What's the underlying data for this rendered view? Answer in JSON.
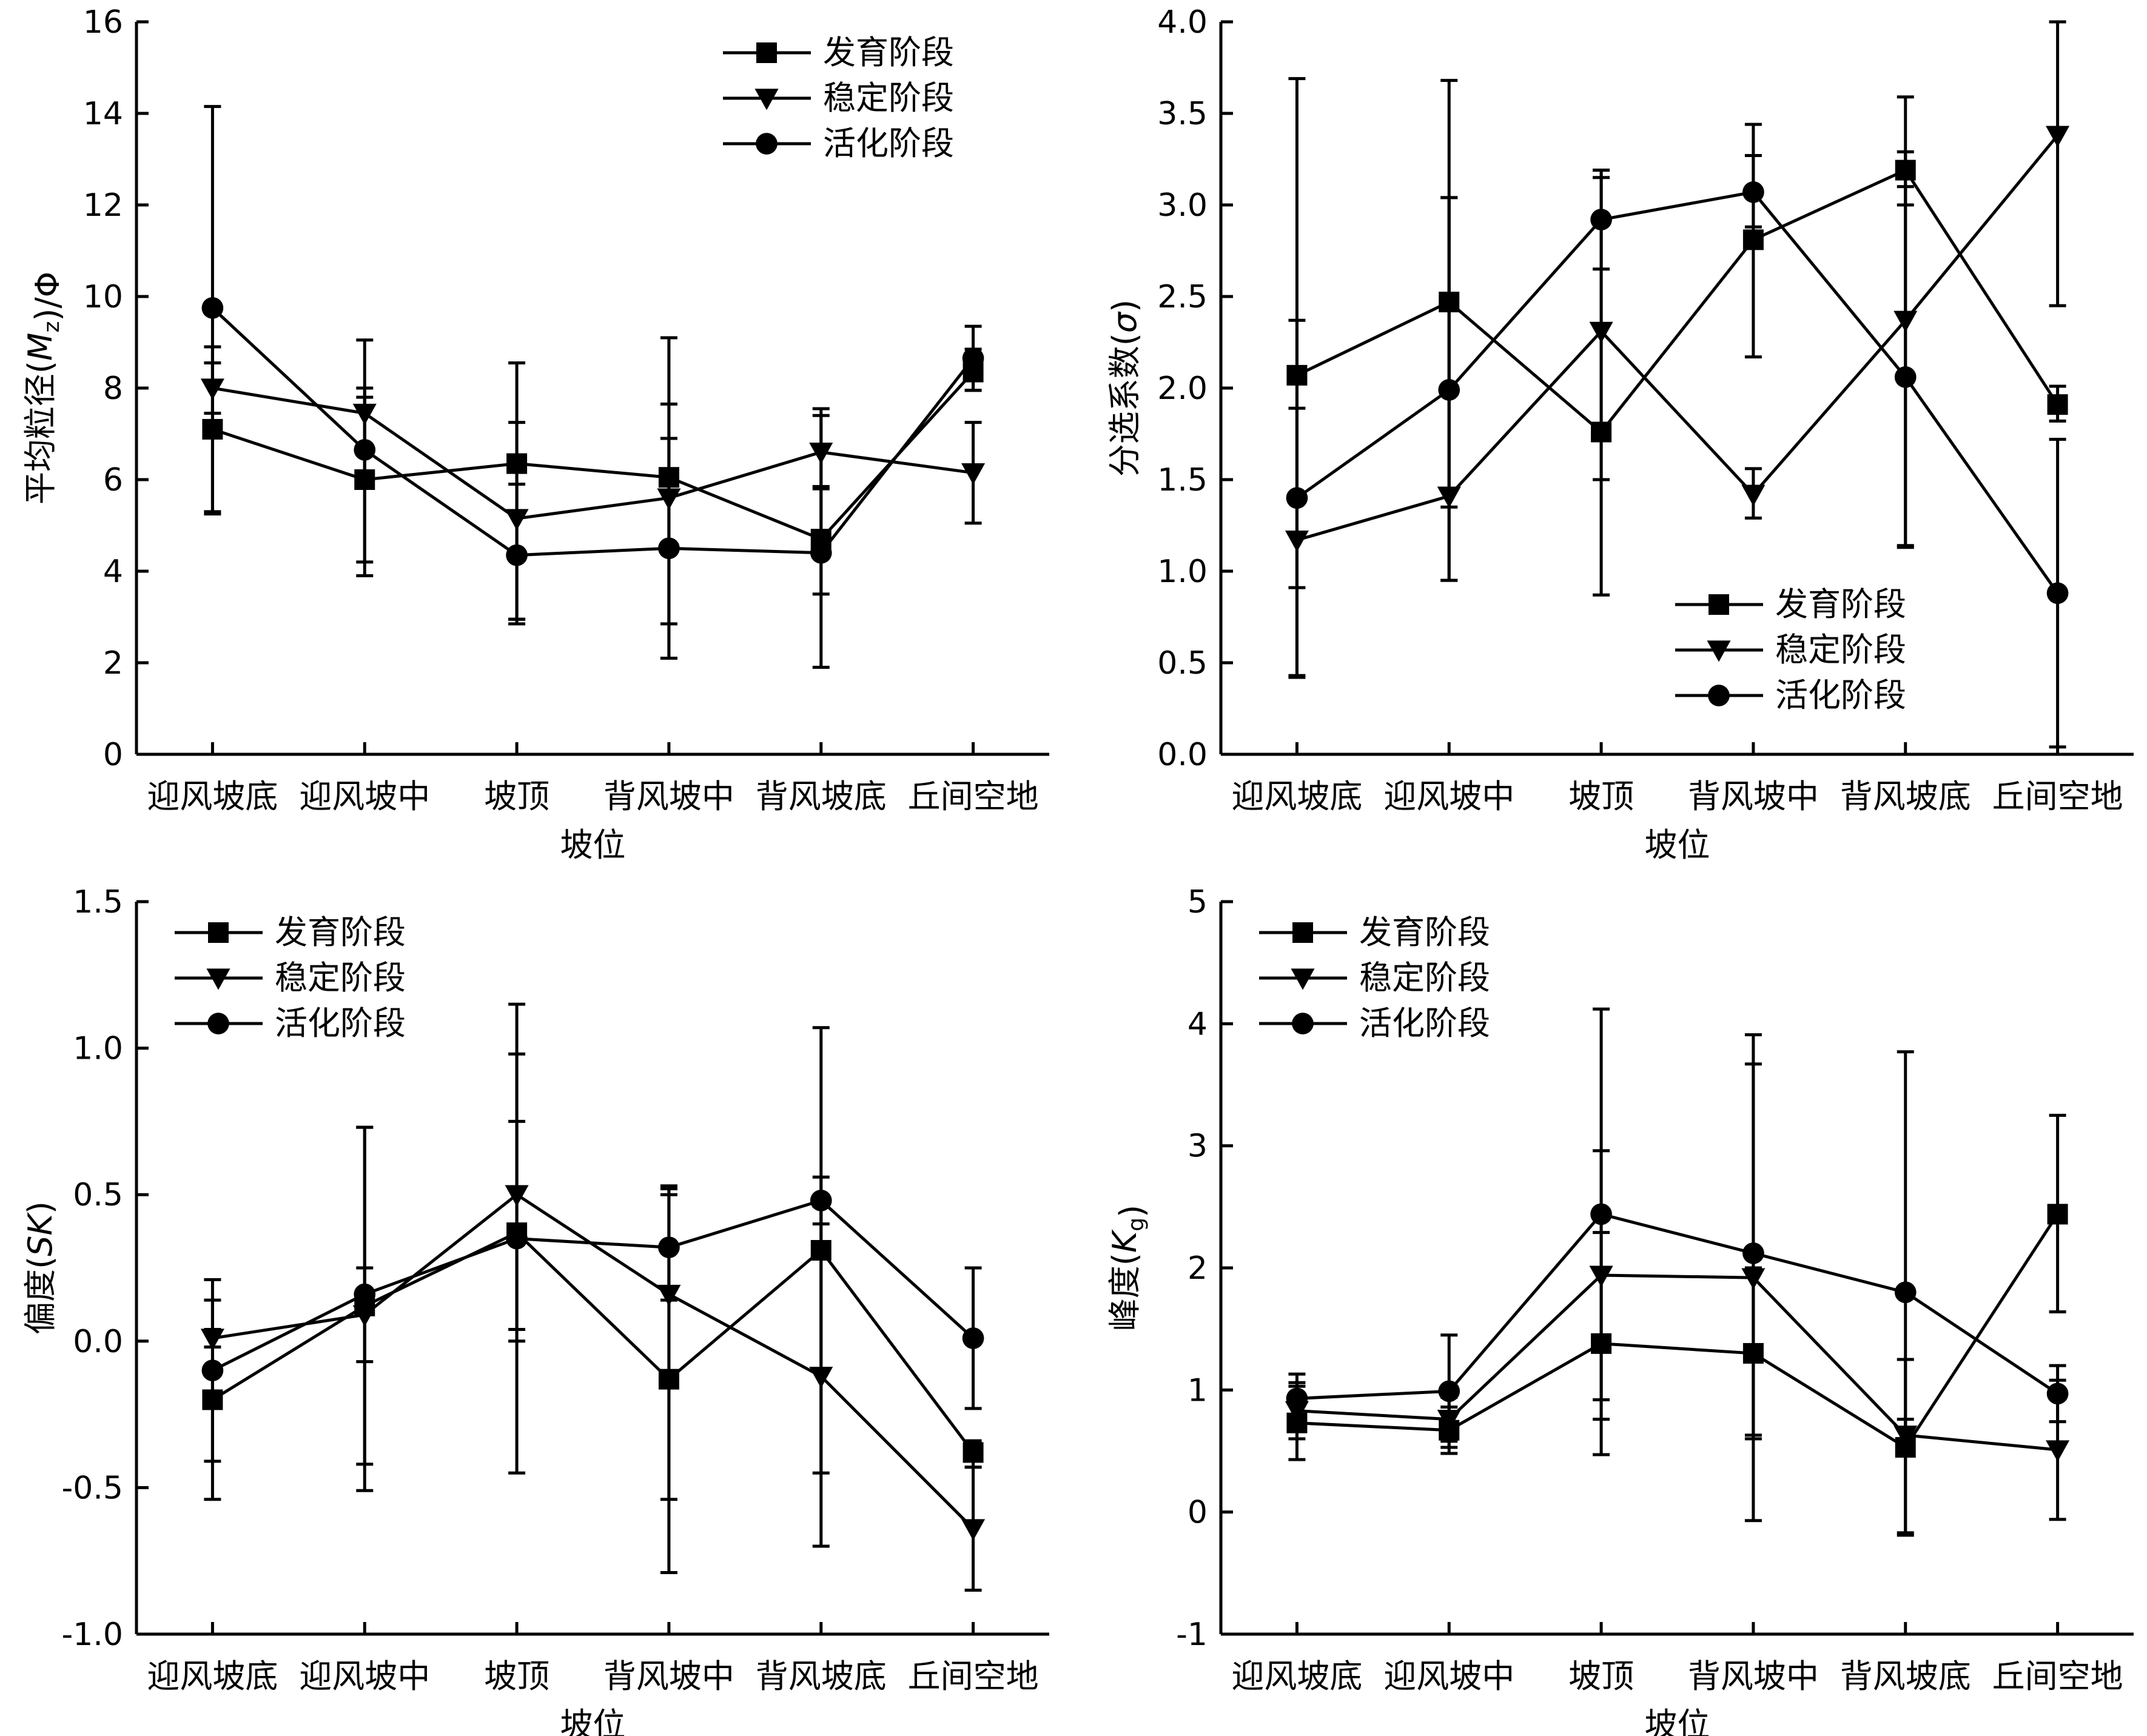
{
  "chart_data": [
    {
      "type": "line",
      "panel": "top-left",
      "xlabel": "坡位",
      "ylabel": "平均粒径(Mz)/Φ",
      "ylabel_parts": [
        {
          "t": "平均粒径(",
          "style": "normal"
        },
        {
          "t": "M",
          "style": "italic"
        },
        {
          "t": "z",
          "style": "sub"
        },
        {
          "t": ")/Φ",
          "style": "normal"
        }
      ],
      "ylim": [
        0,
        16
      ],
      "yticks": [
        0,
        2,
        4,
        6,
        8,
        10,
        12,
        14,
        16
      ],
      "ytick_labels": [
        "0",
        "2",
        "4",
        "6",
        "8",
        "10",
        "12",
        "14",
        "16"
      ],
      "categories": [
        "迎风坡底",
        "迎风坡中",
        "坡顶",
        "背风坡中",
        "背风坡底",
        "丘间空地"
      ],
      "legend_position": "top-right",
      "series": [
        {
          "name": "发育阶段",
          "marker": "square",
          "values": [
            7.1,
            6.0,
            6.35,
            6.05,
            4.7,
            8.35
          ],
          "err": [
            [
              5.3,
              8.9
            ],
            [
              4.2,
              7.8
            ],
            [
              2.95,
              8.55
            ],
            [
              2.1,
              9.1
            ],
            [
              1.9,
              7.55
            ],
            [
              7.95,
              8.85
            ]
          ]
        },
        {
          "name": "稳定阶段",
          "marker": "triangle-down",
          "values": [
            8.0,
            7.45,
            5.15,
            5.6,
            6.6,
            6.15
          ],
          "err": [
            [
              7.45,
              8.55
            ],
            [
              5.9,
              9.05
            ],
            [
              2.85,
              7.25
            ],
            [
              2.85,
              7.65
            ],
            [
              5.8,
              7.4
            ],
            [
              5.05,
              7.25
            ]
          ]
        },
        {
          "name": "活化阶段",
          "marker": "circle",
          "values": [
            9.75,
            6.65,
            4.35,
            4.5,
            4.4,
            8.65
          ],
          "err": [
            [
              5.25,
              14.15
            ],
            [
              3.9,
              8.0
            ],
            [
              2.95,
              5.9
            ],
            [
              2.1,
              6.9
            ],
            [
              3.5,
              5.85
            ],
            [
              7.95,
              9.35
            ]
          ]
        }
      ]
    },
    {
      "type": "line",
      "panel": "top-right",
      "xlabel": "坡位",
      "ylabel": "分选系数(σ)",
      "ylabel_parts": [
        {
          "t": "分选系数(",
          "style": "normal"
        },
        {
          "t": "σ",
          "style": "italic"
        },
        {
          "t": ")",
          "style": "normal"
        }
      ],
      "ylim": [
        0.0,
        4.0
      ],
      "yticks": [
        0.0,
        0.5,
        1.0,
        1.5,
        2.0,
        2.5,
        3.0,
        3.5,
        4.0
      ],
      "ytick_labels": [
        "0.0",
        "0.5",
        "1.0",
        "1.5",
        "2.0",
        "2.5",
        "3.0",
        "3.5",
        "4.0"
      ],
      "categories": [
        "迎风坡底",
        "迎风坡中",
        "坡顶",
        "背风坡中",
        "背风坡底",
        "丘间空地"
      ],
      "legend_position": "bottom-right",
      "series": [
        {
          "name": "发育阶段",
          "marker": "square",
          "values": [
            2.07,
            2.47,
            1.76,
            2.81,
            3.19,
            1.91
          ],
          "err": [
            [
              0.42,
              3.69
            ],
            [
              0.95,
              3.68
            ],
            [
              0.87,
              3.19
            ],
            [
              2.17,
              3.44
            ],
            [
              3.0,
              3.59
            ],
            [
              1.82,
              2.01
            ]
          ]
        },
        {
          "name": "稳定阶段",
          "marker": "triangle-down",
          "values": [
            1.17,
            1.41,
            2.31,
            1.42,
            2.37,
            3.38
          ],
          "err": [
            [
              0.43,
              2.37
            ],
            [
              1.35,
              3.04
            ],
            [
              1.5,
              3.15
            ],
            [
              1.29,
              1.56
            ],
            [
              1.14,
              3.29
            ],
            [
              2.45,
              4.0
            ]
          ]
        },
        {
          "name": "活化阶段",
          "marker": "circle",
          "values": [
            1.4,
            1.99,
            2.92,
            3.07,
            2.06,
            0.88
          ],
          "err": [
            [
              0.91,
              1.89
            ],
            [
              0.95,
              3.04
            ],
            [
              2.65,
              3.19
            ],
            [
              2.88,
              3.27
            ],
            [
              1.13,
              3.1
            ],
            [
              0.04,
              1.72
            ]
          ]
        }
      ]
    },
    {
      "type": "line",
      "panel": "bottom-left",
      "xlabel": "坡位",
      "ylabel": "偏度(SK)",
      "ylabel_parts": [
        {
          "t": "偏度(",
          "style": "normal"
        },
        {
          "t": "SK",
          "style": "italic"
        },
        {
          "t": ")",
          "style": "normal"
        }
      ],
      "ylim": [
        -1.0,
        1.5
      ],
      "yticks": [
        -1.0,
        -0.5,
        0.0,
        0.5,
        1.0,
        1.5
      ],
      "ytick_labels": [
        "-1.0",
        "-0.5",
        "0.0",
        "0.5",
        "1.0",
        "1.5"
      ],
      "categories": [
        "迎风坡底",
        "迎风坡中",
        "坡顶",
        "背风坡中",
        "背风坡底",
        "丘间空地"
      ],
      "legend_position": "top-left",
      "series": [
        {
          "name": "发育阶段",
          "marker": "square",
          "values": [
            -0.2,
            0.12,
            0.37,
            -0.13,
            0.31,
            -0.38
          ],
          "err": [
            [
              -0.41,
              0.21
            ],
            [
              -0.51,
              0.73
            ],
            [
              -0.45,
              1.15
            ],
            [
              -0.79,
              0.53
            ],
            [
              -0.45,
              1.07
            ],
            [
              -0.43,
              -0.34
            ]
          ]
        },
        {
          "name": "稳定阶段",
          "marker": "triangle-down",
          "values": [
            0.01,
            0.09,
            0.5,
            0.16,
            -0.12,
            -0.64
          ],
          "err": [
            [
              -0.02,
              0.04
            ],
            [
              -0.07,
              0.25
            ],
            [
              0.04,
              0.98
            ],
            [
              -0.54,
              0.5
            ],
            [
              -0.7,
              0.46
            ],
            [
              -0.85,
              -0.43
            ]
          ]
        },
        {
          "name": "活化阶段",
          "marker": "circle",
          "values": [
            -0.1,
            0.16,
            0.35,
            0.32,
            0.48,
            0.01
          ],
          "err": [
            [
              -0.54,
              0.14
            ],
            [
              -0.42,
              0.73
            ],
            [
              0.0,
              0.75
            ],
            [
              0.14,
              0.52
            ],
            [
              0.4,
              0.56
            ],
            [
              -0.23,
              0.25
            ]
          ]
        }
      ]
    },
    {
      "type": "line",
      "panel": "bottom-right",
      "xlabel": "坡位",
      "ylabel": "峰度(Kg)",
      "ylabel_parts": [
        {
          "t": "峰度(",
          "style": "normal"
        },
        {
          "t": "K",
          "style": "italic"
        },
        {
          "t": "g",
          "style": "sub"
        },
        {
          "t": ")",
          "style": "normal"
        }
      ],
      "ylim": [
        -1,
        5
      ],
      "yticks": [
        -1,
        0,
        1,
        2,
        3,
        4,
        5
      ],
      "ytick_labels": [
        "-1",
        "0",
        "1",
        "2",
        "3",
        "4",
        "5"
      ],
      "categories": [
        "迎风坡底",
        "迎风坡中",
        "坡顶",
        "背风坡中",
        "背风坡底",
        "丘间空地"
      ],
      "legend_position": "top-left",
      "series": [
        {
          "name": "发育阶段",
          "marker": "square",
          "values": [
            0.73,
            0.67,
            1.38,
            1.3,
            0.53,
            2.44
          ],
          "err": [
            [
              0.43,
              1.03
            ],
            [
              0.48,
              0.86
            ],
            [
              0.47,
              2.29
            ],
            [
              0.6,
              2.0
            ],
            [
              -0.19,
              1.25
            ],
            [
              1.64,
              3.25
            ]
          ]
        },
        {
          "name": "稳定阶段",
          "marker": "triangle-down",
          "values": [
            0.83,
            0.76,
            1.94,
            1.92,
            0.63,
            0.51
          ],
          "err": [
            [
              0.6,
              1.06
            ],
            [
              0.58,
              0.94
            ],
            [
              0.92,
              2.96
            ],
            [
              -0.07,
              3.91
            ],
            [
              0.5,
              0.76
            ],
            [
              -0.06,
              1.08
            ]
          ]
        },
        {
          "name": "活化阶段",
          "marker": "circle",
          "values": [
            0.93,
            0.99,
            2.44,
            2.12,
            1.8,
            0.97
          ],
          "err": [
            [
              0.73,
              1.13
            ],
            [
              0.53,
              1.45
            ],
            [
              0.76,
              4.12
            ],
            [
              0.63,
              3.67
            ],
            [
              -0.17,
              3.77
            ],
            [
              0.74,
              1.2
            ]
          ]
        }
      ]
    }
  ]
}
